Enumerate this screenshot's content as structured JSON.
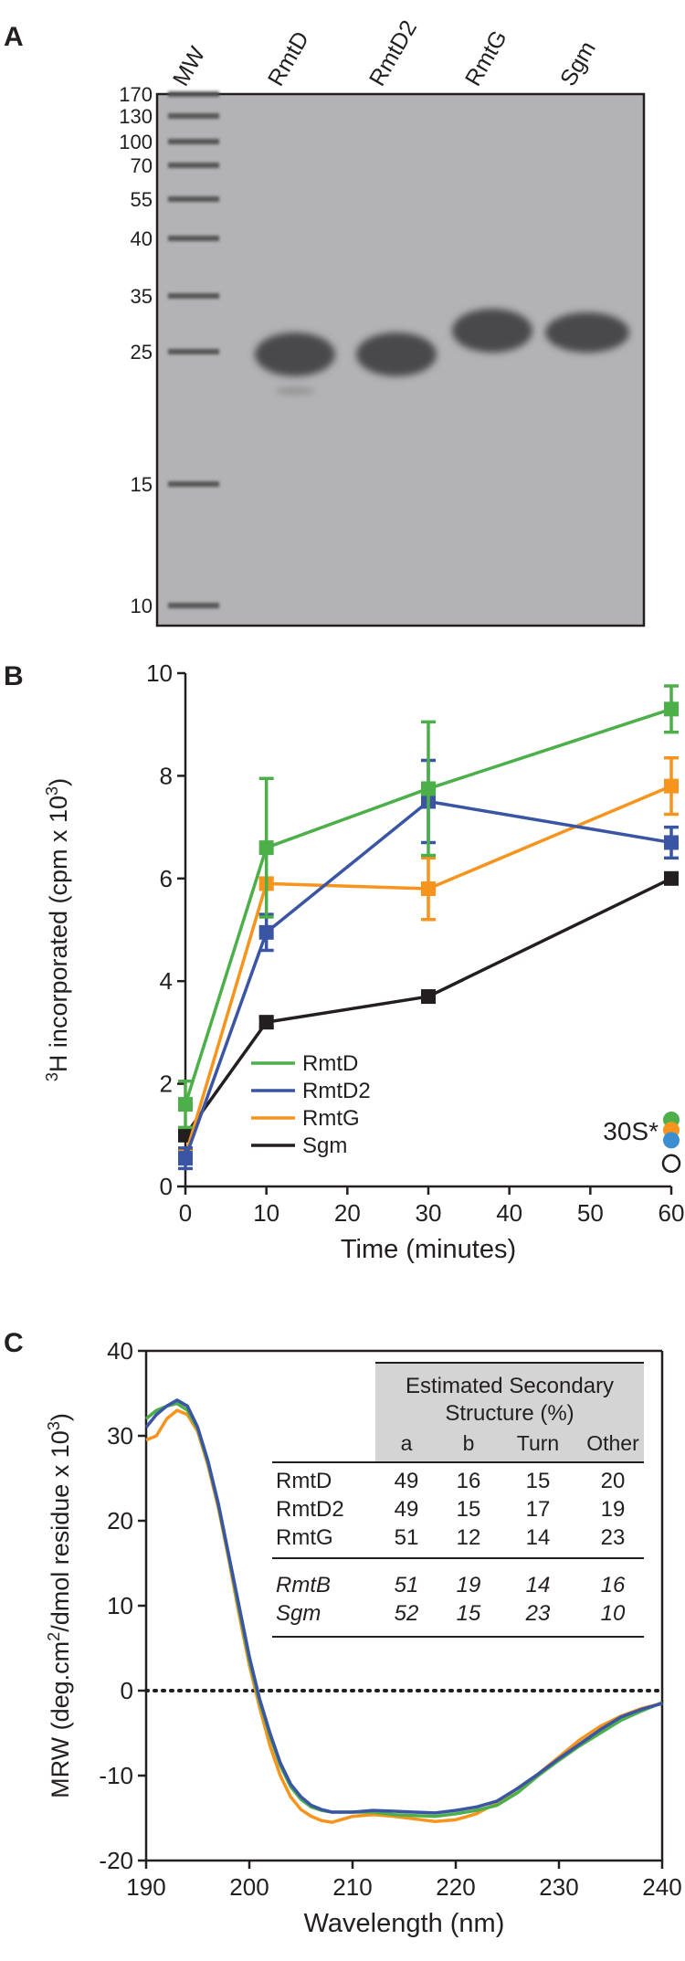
{
  "gel": {
    "panel_label": "A",
    "lanes": [
      "MW",
      "RmtD",
      "RmtD2",
      "RmtG",
      "Sgm"
    ],
    "markers": [
      170,
      130,
      100,
      70,
      55,
      40,
      35,
      25,
      15,
      10
    ]
  },
  "chart_data": [
    {
      "type": "line",
      "panel_label": "B",
      "xlabel": "Time (minutes)",
      "ylabel": [
        {
          "text": "3",
          "sup": true
        },
        {
          "text": "H incorporated (cpm x 10",
          "sup": false
        },
        {
          "text": "3",
          "sup": true
        },
        {
          "text": ")",
          "sup": false
        }
      ],
      "x": [
        0,
        10,
        30,
        60
      ],
      "xlim": [
        0,
        60
      ],
      "xticks": [
        0,
        10,
        20,
        30,
        40,
        50,
        60
      ],
      "ylim": [
        0,
        10
      ],
      "yticks": [
        0,
        2,
        4,
        6,
        8,
        10
      ],
      "marker": "square",
      "legend": "lower-left",
      "series": [
        {
          "name": "RmtD",
          "color": "#4daf4a",
          "values": [
            1.6,
            6.6,
            7.75,
            9.3
          ],
          "errors": [
            0.45,
            1.35,
            1.3,
            0.45
          ]
        },
        {
          "name": "RmtD2",
          "color": "#3a55a4",
          "values": [
            0.55,
            4.95,
            7.5,
            6.7
          ],
          "errors": [
            0.2,
            0.35,
            0.8,
            0.3
          ]
        },
        {
          "name": "RmtG",
          "color": "#f7941d",
          "values": [
            0.6,
            5.9,
            5.8,
            7.8
          ],
          "errors": [
            0.1,
            0.1,
            0.6,
            0.55
          ]
        },
        {
          "name": "Sgm",
          "color": "#231f20",
          "values": [
            1.0,
            3.2,
            3.7,
            6.0
          ],
          "errors": [
            0.1,
            0.1,
            0.1,
            0.1
          ]
        }
      ],
      "reference": {
        "label": "30S*",
        "x": 60,
        "points": [
          {
            "color": "#4daf4a",
            "value": 1.3
          },
          {
            "color": "#f7941d",
            "value": 1.1
          },
          {
            "color": "#3b8fd0",
            "value": 0.9
          },
          {
            "color": "none",
            "value": 0.45
          }
        ]
      }
    },
    {
      "type": "line",
      "panel_label": "C",
      "xlabel": "Wavelength (nm)",
      "ylabel": [
        {
          "text": "MRW (deg.cm",
          "sup": false
        },
        {
          "text": "2",
          "sup": true
        },
        {
          "text": "/dmol residue x 10",
          "sup": false
        },
        {
          "text": "3",
          "sup": true
        },
        {
          "text": ")",
          "sup": false
        }
      ],
      "x": [
        190,
        191,
        192,
        193,
        194,
        195,
        196,
        197,
        198,
        199,
        200,
        201,
        202,
        203,
        204,
        205,
        206,
        207,
        208,
        210,
        212,
        214,
        216,
        218,
        220,
        222,
        224,
        226,
        228,
        230,
        232,
        234,
        236,
        238,
        240
      ],
      "xlim": [
        190,
        240
      ],
      "xticks": [
        190,
        200,
        210,
        220,
        230,
        240
      ],
      "ylim": [
        -20,
        40
      ],
      "yticks": [
        -20,
        -10,
        0,
        10,
        20,
        30,
        40
      ],
      "hline": 0,
      "series": [
        {
          "name": "RmtG",
          "color": "#f7941d",
          "values": [
            29.5,
            30,
            32,
            33,
            32.5,
            30.5,
            26.5,
            21.5,
            15.5,
            9,
            3,
            -2,
            -6.5,
            -10,
            -12.5,
            -14,
            -14.8,
            -15.3,
            -15.5,
            -14.8,
            -14.6,
            -14.8,
            -15.1,
            -15.4,
            -15.2,
            -14.5,
            -13.2,
            -11.5,
            -9.8,
            -7.8,
            -5.8,
            -4.2,
            -3,
            -2.1,
            -1.5
          ]
        },
        {
          "name": "RmtD",
          "color": "#4daf4a",
          "values": [
            32,
            33,
            33.5,
            33.8,
            33,
            30.8,
            26.8,
            21.8,
            15.8,
            9.6,
            3.6,
            -1.3,
            -5.3,
            -8.8,
            -11.3,
            -12.8,
            -13.7,
            -14.1,
            -14.3,
            -14.3,
            -14.3,
            -14.6,
            -14.7,
            -14.8,
            -14.5,
            -14.1,
            -13.5,
            -12,
            -10,
            -8.2,
            -6.5,
            -5,
            -3.5,
            -2.4,
            -1.4
          ]
        },
        {
          "name": "RmtD2",
          "color": "#3a55a4",
          "values": [
            31,
            32.5,
            33.5,
            34.2,
            33.5,
            31,
            27,
            22,
            16,
            10,
            4,
            -1,
            -5,
            -8.5,
            -11,
            -12.5,
            -13.5,
            -14,
            -14.3,
            -14.3,
            -14.1,
            -14.2,
            -14.3,
            -14.4,
            -14.1,
            -13.7,
            -13,
            -11.5,
            -9.8,
            -8,
            -6.3,
            -4.6,
            -3.1,
            -2.2,
            -1.5
          ]
        }
      ],
      "table": {
        "title_lines": [
          "Estimated Secondary",
          "Structure (%)"
        ],
        "columns": [
          "a",
          "b",
          "Turn",
          "Other"
        ],
        "rows": [
          {
            "name": "RmtD",
            "color": "#4daf4a",
            "italic": false,
            "values": [
              49,
              16,
              15,
              20
            ]
          },
          {
            "name": "RmtD2",
            "color": "#3a55a4",
            "italic": false,
            "values": [
              49,
              15,
              17,
              19
            ]
          },
          {
            "name": "RmtG",
            "color": "#f7941d",
            "italic": false,
            "values": [
              51,
              12,
              14,
              23
            ]
          },
          {
            "name": "RmtB",
            "color": "#231f20",
            "italic": true,
            "values": [
              51,
              19,
              14,
              16
            ]
          },
          {
            "name": "Sgm",
            "color": "#231f20",
            "italic": true,
            "values": [
              52,
              15,
              23,
              10
            ]
          }
        ]
      }
    }
  ]
}
